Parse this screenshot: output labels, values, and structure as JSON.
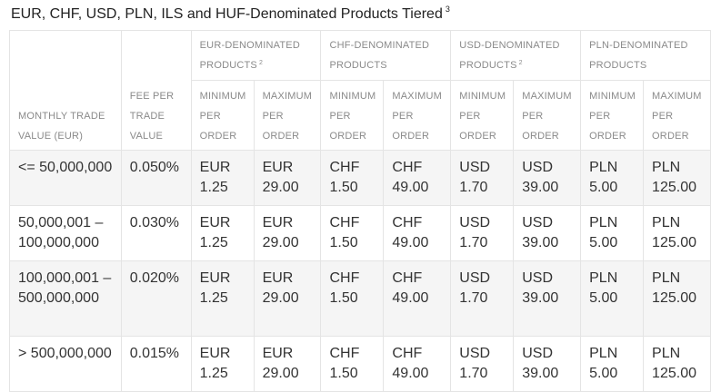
{
  "title": {
    "text": "EUR, CHF, USD, PLN, ILS and HUF-Denominated Products Tiered",
    "footnote": "3"
  },
  "headers": {
    "monthly_trade_value": "MONTHLY TRADE VALUE (EUR)",
    "fee_per_trade_value": "FEE PER TRADE VALUE",
    "groups": [
      {
        "label": "EUR-DENOMINATED PRODUCTS",
        "footnote": "2"
      },
      {
        "label": "CHF-DENOMINATED PRODUCTS",
        "footnote": ""
      },
      {
        "label": "USD-DENOMINATED PRODUCTS",
        "footnote": "2"
      },
      {
        "label": "PLN-DENOMINATED PRODUCTS",
        "footnote": ""
      }
    ],
    "minimum_per_order": "MINIMUM PER ORDER",
    "maximum_per_order": "MAXIMUM PER ORDER"
  },
  "rows": [
    {
      "value": "<= 50,000,000",
      "fee": "0.050%",
      "cells": [
        "EUR 1.25",
        "EUR 29.00",
        "CHF 1.50",
        "CHF 49.00",
        "USD 1.70",
        "USD 39.00",
        "PLN 5.00",
        "PLN 125.00"
      ]
    },
    {
      "value": "50,000,001 – 100,000,000",
      "fee": "0.030%",
      "cells": [
        "EUR 1.25",
        "EUR 29.00",
        "CHF 1.50",
        "CHF 49.00",
        "USD 1.70",
        "USD 39.00",
        "PLN 5.00",
        "PLN 125.00"
      ]
    },
    {
      "value": "100,000,001 – 500,000,000",
      "fee": "0.020%",
      "cells": [
        "EUR 1.25",
        "EUR 29.00",
        "CHF 1.50",
        "CHF 49.00",
        "USD 1.70",
        "USD 39.00",
        "PLN 5.00",
        "PLN 125.00"
      ]
    },
    {
      "value": "> 500,000,000",
      "fee": "0.015%",
      "cells": [
        "EUR 1.25",
        "EUR 29.00",
        "CHF 1.50",
        "CHF 49.00",
        "USD 1.70",
        "USD 39.00",
        "PLN 5.00",
        "PLN 125.00"
      ]
    }
  ]
}
